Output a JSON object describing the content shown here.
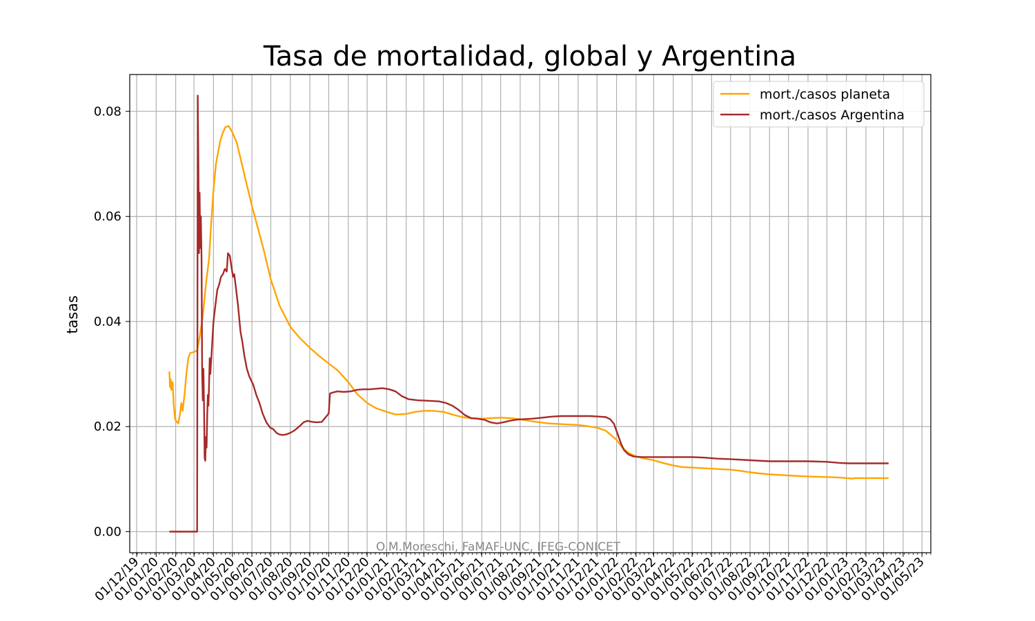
{
  "chart_data": {
    "type": "line",
    "title": "Tasa de mortalidad, global y Argentina",
    "xlabel": "",
    "ylabel": "tasas",
    "watermark": "O.M.Moreschi, FaMAF-UNC, IFEG-CONICET",
    "x_tick_labels": [
      "01/12/19",
      "01/01/20",
      "01/02/20",
      "01/03/20",
      "01/04/20",
      "01/05/20",
      "01/06/20",
      "01/07/20",
      "01/08/20",
      "01/09/20",
      "01/10/20",
      "01/11/20",
      "01/12/20",
      "01/01/21",
      "01/02/21",
      "01/03/21",
      "01/04/21",
      "01/05/21",
      "01/06/21",
      "01/07/21",
      "01/08/21",
      "01/09/21",
      "01/10/21",
      "01/11/21",
      "01/12/21",
      "01/01/22",
      "01/02/22",
      "01/03/22",
      "01/04/22",
      "01/05/22",
      "01/06/22",
      "01/07/22",
      "01/08/22",
      "01/09/22",
      "01/10/22",
      "01/11/22",
      "01/12/22",
      "01/01/23",
      "01/02/23",
      "01/03/23",
      "01/04/23",
      "01/05/23"
    ],
    "xlim": [
      "2019-11-20",
      "2023-05-15"
    ],
    "y_ticks": [
      "0.00",
      "0.02",
      "0.04",
      "0.06",
      "0.08"
    ],
    "ylim": [
      -0.004,
      0.087
    ],
    "grid": true,
    "legend_position": "top-right",
    "series": [
      {
        "name": "mort./casos planeta",
        "color": "#FFA500",
        "points": [
          [
            "2020-01-22",
            0.0305
          ],
          [
            "2020-01-23",
            0.0275
          ],
          [
            "2020-01-24",
            0.029
          ],
          [
            "2020-01-25",
            0.027
          ],
          [
            "2020-01-27",
            0.0285
          ],
          [
            "2020-01-29",
            0.024
          ],
          [
            "2020-01-31",
            0.0215
          ],
          [
            "2020-02-02",
            0.021
          ],
          [
            "2020-02-05",
            0.0206
          ],
          [
            "2020-02-08",
            0.0225
          ],
          [
            "2020-02-10",
            0.0245
          ],
          [
            "2020-02-12",
            0.023
          ],
          [
            "2020-02-15",
            0.026
          ],
          [
            "2020-02-18",
            0.03
          ],
          [
            "2020-02-21",
            0.033
          ],
          [
            "2020-02-24",
            0.034
          ],
          [
            "2020-03-01",
            0.0342
          ],
          [
            "2020-03-06",
            0.0345
          ],
          [
            "2020-03-10",
            0.037
          ],
          [
            "2020-03-15",
            0.041
          ],
          [
            "2020-03-20",
            0.047
          ],
          [
            "2020-03-25",
            0.052
          ],
          [
            "2020-03-28",
            0.058
          ],
          [
            "2020-04-01",
            0.065
          ],
          [
            "2020-04-05",
            0.07
          ],
          [
            "2020-04-08",
            0.072
          ],
          [
            "2020-04-12",
            0.0745
          ],
          [
            "2020-04-16",
            0.076
          ],
          [
            "2020-04-20",
            0.077
          ],
          [
            "2020-04-25",
            0.0772
          ],
          [
            "2020-05-01",
            0.076
          ],
          [
            "2020-05-08",
            0.074
          ],
          [
            "2020-05-15",
            0.0705
          ],
          [
            "2020-05-22",
            0.067
          ],
          [
            "2020-06-01",
            0.062
          ],
          [
            "2020-06-10",
            0.058
          ],
          [
            "2020-06-20",
            0.0535
          ],
          [
            "2020-07-01",
            0.048
          ],
          [
            "2020-07-15",
            0.043
          ],
          [
            "2020-08-01",
            0.039
          ],
          [
            "2020-08-15",
            0.037
          ],
          [
            "2020-09-01",
            0.035
          ],
          [
            "2020-09-15",
            0.0335
          ],
          [
            "2020-10-01",
            0.032
          ],
          [
            "2020-10-15",
            0.0307
          ],
          [
            "2020-11-01",
            0.0285
          ],
          [
            "2020-11-15",
            0.0262
          ],
          [
            "2020-12-01",
            0.0245
          ],
          [
            "2020-12-15",
            0.0235
          ],
          [
            "2021-01-01",
            0.0228
          ],
          [
            "2021-01-15",
            0.0223
          ],
          [
            "2021-02-01",
            0.0224
          ],
          [
            "2021-02-15",
            0.0228
          ],
          [
            "2021-03-01",
            0.023
          ],
          [
            "2021-03-15",
            0.023
          ],
          [
            "2021-04-01",
            0.0228
          ],
          [
            "2021-04-15",
            0.0223
          ],
          [
            "2021-05-01",
            0.0218
          ],
          [
            "2021-05-15",
            0.0216
          ],
          [
            "2021-06-01",
            0.0215
          ],
          [
            "2021-06-15",
            0.0216
          ],
          [
            "2021-07-01",
            0.0217
          ],
          [
            "2021-07-15",
            0.0216
          ],
          [
            "2021-08-01",
            0.0214
          ],
          [
            "2021-08-15",
            0.0211
          ],
          [
            "2021-09-01",
            0.0208
          ],
          [
            "2021-09-15",
            0.0206
          ],
          [
            "2021-10-01",
            0.0205
          ],
          [
            "2021-10-15",
            0.0204
          ],
          [
            "2021-11-01",
            0.0203
          ],
          [
            "2021-11-15",
            0.0201
          ],
          [
            "2021-12-01",
            0.0198
          ],
          [
            "2021-12-15",
            0.0192
          ],
          [
            "2022-01-01",
            0.0175
          ],
          [
            "2022-01-10",
            0.016
          ],
          [
            "2022-01-20",
            0.015
          ],
          [
            "2022-02-01",
            0.0143
          ],
          [
            "2022-02-15",
            0.0139
          ],
          [
            "2022-03-01",
            0.0136
          ],
          [
            "2022-03-15",
            0.0131
          ],
          [
            "2022-04-01",
            0.0126
          ],
          [
            "2022-04-15",
            0.0123
          ],
          [
            "2022-05-01",
            0.0122
          ],
          [
            "2022-05-15",
            0.0121
          ],
          [
            "2022-06-01",
            0.012
          ],
          [
            "2022-06-15",
            0.0119
          ],
          [
            "2022-07-01",
            0.0118
          ],
          [
            "2022-07-15",
            0.0116
          ],
          [
            "2022-08-01",
            0.0113
          ],
          [
            "2022-08-15",
            0.0111
          ],
          [
            "2022-09-01",
            0.0109
          ],
          [
            "2022-10-01",
            0.0107
          ],
          [
            "2022-11-01",
            0.0105
          ],
          [
            "2022-12-01",
            0.0104
          ],
          [
            "2022-12-20",
            0.0103
          ],
          [
            "2023-01-10",
            0.0101
          ],
          [
            "2023-01-15",
            0.0102
          ],
          [
            "2023-02-01",
            0.0102
          ],
          [
            "2023-03-09",
            0.0102
          ]
        ]
      },
      {
        "name": "mort./casos Argentina",
        "color": "#A52A2A",
        "points": [
          [
            "2020-01-22",
            0.0
          ],
          [
            "2020-03-06",
            0.0
          ],
          [
            "2020-03-07",
            0.083
          ],
          [
            "2020-03-08",
            0.07
          ],
          [
            "2020-03-09",
            0.053
          ],
          [
            "2020-03-10",
            0.0645
          ],
          [
            "2020-03-11",
            0.054
          ],
          [
            "2020-03-12",
            0.06
          ],
          [
            "2020-03-13",
            0.052
          ],
          [
            "2020-03-14",
            0.03
          ],
          [
            "2020-03-15",
            0.025
          ],
          [
            "2020-03-16",
            0.031
          ],
          [
            "2020-03-17",
            0.024
          ],
          [
            "2020-03-18",
            0.014
          ],
          [
            "2020-03-19",
            0.0135
          ],
          [
            "2020-03-20",
            0.018
          ],
          [
            "2020-03-21",
            0.016
          ],
          [
            "2020-03-22",
            0.022
          ],
          [
            "2020-03-23",
            0.026
          ],
          [
            "2020-03-24",
            0.024
          ],
          [
            "2020-03-25",
            0.028
          ],
          [
            "2020-03-26",
            0.033
          ],
          [
            "2020-03-27",
            0.03
          ],
          [
            "2020-03-29",
            0.034
          ],
          [
            "2020-04-01",
            0.04
          ],
          [
            "2020-04-04",
            0.043
          ],
          [
            "2020-04-07",
            0.046
          ],
          [
            "2020-04-10",
            0.047
          ],
          [
            "2020-04-13",
            0.0485
          ],
          [
            "2020-04-16",
            0.049
          ],
          [
            "2020-04-19",
            0.05
          ],
          [
            "2020-04-22",
            0.0495
          ],
          [
            "2020-04-24",
            0.053
          ],
          [
            "2020-04-27",
            0.0525
          ],
          [
            "2020-04-30",
            0.05
          ],
          [
            "2020-05-02",
            0.0485
          ],
          [
            "2020-05-04",
            0.049
          ],
          [
            "2020-05-07",
            0.046
          ],
          [
            "2020-05-10",
            0.043
          ],
          [
            "2020-05-14",
            0.038
          ],
          [
            "2020-05-17",
            0.036
          ],
          [
            "2020-05-20",
            0.0335
          ],
          [
            "2020-05-24",
            0.031
          ],
          [
            "2020-05-28",
            0.0295
          ],
          [
            "2020-06-03",
            0.028
          ],
          [
            "2020-06-08",
            0.026
          ],
          [
            "2020-06-13",
            0.0245
          ],
          [
            "2020-06-18",
            0.0225
          ],
          [
            "2020-06-24",
            0.0208
          ],
          [
            "2020-06-30",
            0.0198
          ],
          [
            "2020-07-05",
            0.0195
          ],
          [
            "2020-07-10",
            0.0188
          ],
          [
            "2020-07-15",
            0.0185
          ],
          [
            "2020-07-20",
            0.0184
          ],
          [
            "2020-07-25",
            0.0185
          ],
          [
            "2020-08-01",
            0.0188
          ],
          [
            "2020-08-08",
            0.0193
          ],
          [
            "2020-08-15",
            0.02
          ],
          [
            "2020-08-22",
            0.0208
          ],
          [
            "2020-08-28",
            0.0211
          ],
          [
            "2020-09-05",
            0.0209
          ],
          [
            "2020-09-12",
            0.0208
          ],
          [
            "2020-09-20",
            0.0209
          ],
          [
            "2020-09-25",
            0.0216
          ],
          [
            "2020-10-01",
            0.0225
          ],
          [
            "2020-10-03",
            0.0263
          ],
          [
            "2020-10-08",
            0.0265
          ],
          [
            "2020-10-15",
            0.0267
          ],
          [
            "2020-10-25",
            0.0266
          ],
          [
            "2020-11-05",
            0.0267
          ],
          [
            "2020-11-15",
            0.027
          ],
          [
            "2020-11-25",
            0.0271
          ],
          [
            "2020-12-05",
            0.0271
          ],
          [
            "2020-12-15",
            0.0272
          ],
          [
            "2020-12-25",
            0.0273
          ],
          [
            "2021-01-05",
            0.0271
          ],
          [
            "2021-01-15",
            0.0267
          ],
          [
            "2021-01-25",
            0.0258
          ],
          [
            "2021-02-05",
            0.0252
          ],
          [
            "2021-02-20",
            0.025
          ],
          [
            "2021-03-10",
            0.0249
          ],
          [
            "2021-03-25",
            0.0248
          ],
          [
            "2021-04-05",
            0.0245
          ],
          [
            "2021-04-15",
            0.024
          ],
          [
            "2021-04-25",
            0.0232
          ],
          [
            "2021-05-05",
            0.0222
          ],
          [
            "2021-05-15",
            0.0216
          ],
          [
            "2021-05-25",
            0.0215
          ],
          [
            "2021-06-05",
            0.0213
          ],
          [
            "2021-06-15",
            0.0208
          ],
          [
            "2021-06-25",
            0.0206
          ],
          [
            "2021-07-05",
            0.0208
          ],
          [
            "2021-07-15",
            0.0211
          ],
          [
            "2021-07-25",
            0.0213
          ],
          [
            "2021-08-05",
            0.0214
          ],
          [
            "2021-08-20",
            0.0215
          ],
          [
            "2021-09-05",
            0.0217
          ],
          [
            "2021-09-20",
            0.0219
          ],
          [
            "2021-10-05",
            0.022
          ],
          [
            "2021-10-20",
            0.022
          ],
          [
            "2021-11-05",
            0.022
          ],
          [
            "2021-11-20",
            0.022
          ],
          [
            "2021-12-05",
            0.0219
          ],
          [
            "2021-12-15",
            0.0218
          ],
          [
            "2021-12-22",
            0.0214
          ],
          [
            "2021-12-28",
            0.0205
          ],
          [
            "2022-01-03",
            0.0185
          ],
          [
            "2022-01-08",
            0.0168
          ],
          [
            "2022-01-13",
            0.0155
          ],
          [
            "2022-01-20",
            0.0147
          ],
          [
            "2022-01-28",
            0.0143
          ],
          [
            "2022-02-10",
            0.0142
          ],
          [
            "2022-03-01",
            0.0142
          ],
          [
            "2022-04-01",
            0.0142
          ],
          [
            "2022-05-01",
            0.0142
          ],
          [
            "2022-05-20",
            0.0141
          ],
          [
            "2022-06-10",
            0.0139
          ],
          [
            "2022-07-01",
            0.0138
          ],
          [
            "2022-08-01",
            0.0136
          ],
          [
            "2022-09-01",
            0.0134
          ],
          [
            "2022-10-01",
            0.0134
          ],
          [
            "2022-11-01",
            0.0134
          ],
          [
            "2022-12-01",
            0.0133
          ],
          [
            "2022-12-20",
            0.0131
          ],
          [
            "2023-01-05",
            0.013
          ],
          [
            "2023-02-01",
            0.013
          ],
          [
            "2023-03-09",
            0.013
          ]
        ]
      }
    ]
  }
}
